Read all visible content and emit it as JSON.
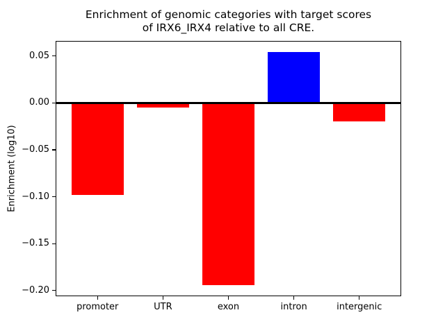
{
  "chart_data": {
    "type": "bar",
    "title": "Enrichment of genomic categories with target scores of IRX6_IRX4 relative to all CRE.",
    "title_lines": [
      "Enrichment of genomic categories with target scores",
      "of IRX6_IRX4 relative to all CRE."
    ],
    "xlabel": "",
    "ylabel": "Enrichment (log10)",
    "categories": [
      "promoter",
      "UTR",
      "exon",
      "intron",
      "intergenic"
    ],
    "values": [
      -0.098,
      -0.005,
      -0.194,
      0.054,
      -0.02
    ],
    "bar_colors": [
      "#ff0000",
      "#ff0000",
      "#ff0000",
      "#0000ff",
      "#ff0000"
    ],
    "positive_color": "#0000ff",
    "negative_color": "#ff0000",
    "axis_color": "#000000",
    "background_color": "#ffffff",
    "ylim": [
      -0.206,
      0.066
    ],
    "yticks": [
      0.05,
      0,
      -0.05,
      -0.1,
      -0.15,
      -0.2
    ],
    "ytick_labels": [
      "0.05",
      "0.00",
      "−0.05",
      "−0.10",
      "−0.15",
      "−0.20"
    ],
    "bar_width_fraction": 0.8,
    "x_margin_units": 0.64,
    "zero_line": true,
    "grid": false,
    "legend": false
  }
}
